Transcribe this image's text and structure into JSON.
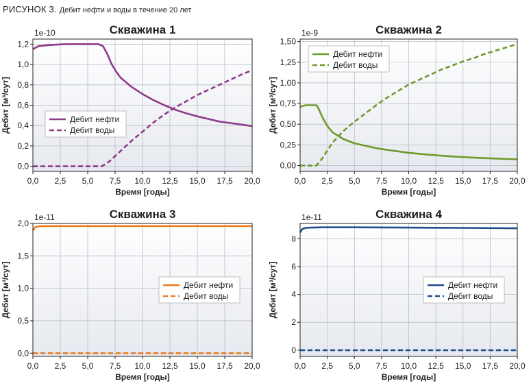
{
  "figure": {
    "label": "РИСУНОК 3.",
    "caption": "Дебит нефти и воды в течение 20 лет"
  },
  "chart_data": [
    {
      "type": "line",
      "title": "Скважина 1",
      "xlabel": "Время [годы]",
      "ylabel": "Дебит [м³/сут]",
      "y_multiplier": "1e-10",
      "xlim": [
        0,
        20
      ],
      "ylim": [
        -0.05,
        1.25
      ],
      "x_ticks": [
        0,
        2.5,
        5,
        7.5,
        10,
        12.5,
        15,
        17.5,
        20
      ],
      "x_tick_labels": [
        "0,0",
        "2,5",
        "5,0",
        "7,5",
        "10,0",
        "12,5",
        "15,0",
        "17,5",
        "20,0"
      ],
      "y_ticks": [
        0,
        0.2,
        0.4,
        0.6,
        0.8,
        1.0,
        1.2
      ],
      "y_tick_labels": [
        "0,0",
        "0,2",
        "0,4",
        "0,6",
        "0,8",
        "1,0",
        "1,2"
      ],
      "grid": true,
      "legend_position": "center-left",
      "color": "#8e3a8a",
      "series": [
        {
          "name": "Дебит нефти",
          "style": "solid",
          "x": [
            0,
            0.5,
            1,
            2,
            3,
            4,
            5,
            6,
            6.4,
            6.8,
            7.2,
            7.6,
            8,
            9,
            10,
            11,
            12,
            13,
            14,
            15,
            16,
            17,
            18,
            19,
            20
          ],
          "y": [
            1.15,
            1.18,
            1.185,
            1.195,
            1.2,
            1.2,
            1.2,
            1.2,
            1.18,
            1.1,
            1.0,
            0.93,
            0.87,
            0.78,
            0.71,
            0.65,
            0.6,
            0.555,
            0.52,
            0.49,
            0.465,
            0.44,
            0.425,
            0.41,
            0.395
          ]
        },
        {
          "name": "Дебит воды",
          "style": "dashed",
          "x": [
            0,
            6.3,
            7,
            8,
            9,
            10,
            11,
            12,
            13,
            14,
            15,
            16,
            17,
            18,
            19,
            20
          ],
          "y": [
            0,
            0,
            0.05,
            0.15,
            0.25,
            0.34,
            0.43,
            0.51,
            0.58,
            0.64,
            0.7,
            0.75,
            0.8,
            0.85,
            0.9,
            0.945
          ]
        }
      ]
    },
    {
      "type": "line",
      "title": "Скважина 2",
      "xlabel": "Время [годы]",
      "ylabel": "Дебит [м³/сут]",
      "y_multiplier": "1e-9",
      "xlim": [
        0,
        20
      ],
      "ylim": [
        -0.07,
        1.53
      ],
      "x_ticks": [
        0,
        2.5,
        5,
        7.5,
        10,
        12.5,
        15,
        17.5,
        20
      ],
      "x_tick_labels": [
        "0,0",
        "2,5",
        "5,0",
        "7,5",
        "10,0",
        "12,5",
        "15,0",
        "17,5",
        "20,0"
      ],
      "y_ticks": [
        0,
        0.25,
        0.5,
        0.75,
        1.0,
        1.25,
        1.5
      ],
      "y_tick_labels": [
        "0,00",
        "0,25",
        "0,50",
        "0,75",
        "1,00",
        "1,25",
        "1,50"
      ],
      "grid": true,
      "legend_position": "top-left",
      "color": "#6e9a2c",
      "series": [
        {
          "name": "Дебит нефти",
          "style": "solid",
          "x": [
            0,
            0.5,
            1,
            1.5,
            1.7,
            2,
            2.5,
            3,
            4,
            5,
            6,
            7,
            8,
            10,
            12,
            14,
            16,
            18,
            20
          ],
          "y": [
            0.71,
            0.73,
            0.73,
            0.73,
            0.69,
            0.6,
            0.48,
            0.4,
            0.32,
            0.27,
            0.24,
            0.21,
            0.19,
            0.155,
            0.13,
            0.11,
            0.095,
            0.085,
            0.075
          ]
        },
        {
          "name": "Дебит воды",
          "style": "dashed",
          "x": [
            0,
            1.5,
            2,
            3,
            4,
            5,
            6,
            7,
            8,
            9,
            10,
            11,
            12,
            13,
            14,
            15,
            16,
            17,
            18,
            19,
            20
          ],
          "y": [
            0,
            0,
            0.08,
            0.28,
            0.42,
            0.53,
            0.63,
            0.73,
            0.82,
            0.9,
            0.98,
            1.04,
            1.1,
            1.16,
            1.21,
            1.26,
            1.3,
            1.35,
            1.39,
            1.43,
            1.47
          ]
        }
      ]
    },
    {
      "type": "line",
      "title": "Скважина 3",
      "xlabel": "Время [годы]",
      "ylabel": "Дебит [м³/сут]",
      "y_multiplier": "1e-11",
      "xlim": [
        0,
        20
      ],
      "ylim": [
        -0.05,
        2.0
      ],
      "x_ticks": [
        0,
        2.5,
        5,
        7.5,
        10,
        12.5,
        15,
        17.5,
        20
      ],
      "x_tick_labels": [
        "0,0",
        "2,5",
        "5,0",
        "7,5",
        "10,0",
        "12,5",
        "15,0",
        "17,5",
        "20,0"
      ],
      "y_ticks": [
        0,
        0.5,
        1.0,
        1.5,
        2.0
      ],
      "y_tick_labels": [
        "0,0",
        "0,5",
        "1,0",
        "1,5",
        "2,0"
      ],
      "grid": true,
      "legend_position": "center-right",
      "color": "#f07a1e",
      "series": [
        {
          "name": "Дебит нефти",
          "style": "solid",
          "x": [
            0,
            0.2,
            0.5,
            1,
            2,
            5,
            10,
            15,
            20
          ],
          "y": [
            1.89,
            1.94,
            1.955,
            1.96,
            1.96,
            1.96,
            1.96,
            1.96,
            1.96
          ]
        },
        {
          "name": "Дебит воды",
          "style": "dashed",
          "x": [
            0,
            5,
            10,
            15,
            20
          ],
          "y": [
            0,
            0,
            0,
            0,
            0
          ]
        }
      ]
    },
    {
      "type": "line",
      "title": "Скважина 4",
      "xlabel": "Время [годы]",
      "ylabel": "Дебит [м³/сут]",
      "y_multiplier": "1e-11",
      "xlim": [
        0,
        20
      ],
      "ylim": [
        -0.45,
        9.1
      ],
      "x_ticks": [
        0,
        2.5,
        5,
        7.5,
        10,
        12.5,
        15,
        17.5,
        20
      ],
      "x_tick_labels": [
        "0,0",
        "2,5",
        "5,0",
        "7,5",
        "10,0",
        "12,5",
        "15,0",
        "17,5",
        "20,0"
      ],
      "y_ticks": [
        0,
        2,
        4,
        6,
        8
      ],
      "y_tick_labels": [
        "0",
        "2",
        "4",
        "6",
        "8"
      ],
      "grid": true,
      "legend_position": "center-right",
      "color": "#1f4e8c",
      "series": [
        {
          "name": "Дебит нефти",
          "style": "solid",
          "x": [
            0,
            0.2,
            0.5,
            1,
            2,
            5,
            10,
            15,
            20
          ],
          "y": [
            8.45,
            8.7,
            8.78,
            8.8,
            8.82,
            8.82,
            8.8,
            8.78,
            8.75
          ]
        },
        {
          "name": "Дебит воды",
          "style": "dashed",
          "x": [
            0,
            5,
            10,
            15,
            20
          ],
          "y": [
            0,
            0,
            0,
            0,
            0
          ]
        }
      ]
    }
  ]
}
